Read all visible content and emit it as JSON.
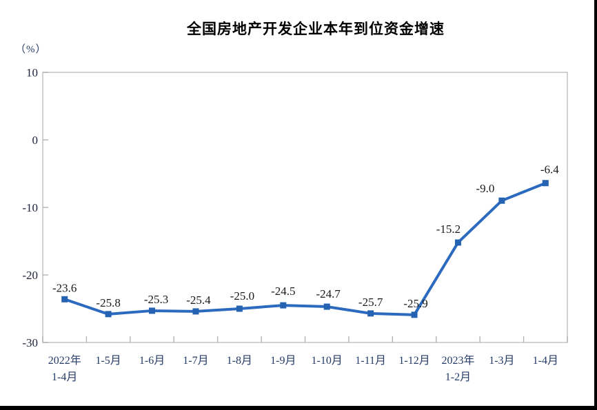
{
  "chart": {
    "title": "全国房地产开发企业本年到位资金增速",
    "unit_label": "（%）"
  },
  "chart_data": {
    "type": "line",
    "title": "全国房地产开发企业本年到位资金增速",
    "ylabel": "（%）",
    "categories": [
      "2022年\n1-4月",
      "1-5月",
      "1-6月",
      "1-7月",
      "1-8月",
      "1-9月",
      "1-10月",
      "1-11月",
      "1-12月",
      "2023年\n1-2月",
      "1-3月",
      "1-4月"
    ],
    "values": [
      -23.6,
      -25.8,
      -25.3,
      -25.4,
      -25.0,
      -24.5,
      -24.7,
      -25.7,
      -25.9,
      -15.2,
      -9.0,
      -6.4
    ],
    "point_labels": [
      "-23.6",
      "-25.8",
      "-25.3",
      "-25.4",
      "-25.0",
      "-24.5",
      "-24.7",
      "-25.7",
      "-25.9",
      "-15.2",
      "-9.0",
      "-6.4"
    ],
    "ylim": [
      -30,
      10
    ],
    "yticks": [
      10,
      0,
      -10,
      -20,
      -30
    ],
    "grid": false,
    "legend": "none",
    "colors": {
      "line": "#2b6abe",
      "marker": "#2562b2",
      "plot_border": "#c6c6c6",
      "tick": "#b3b3b3",
      "y_tick_text": "#20243a",
      "x_tick_text": "#253a66",
      "point_label_text": "#1a1a1a"
    }
  }
}
